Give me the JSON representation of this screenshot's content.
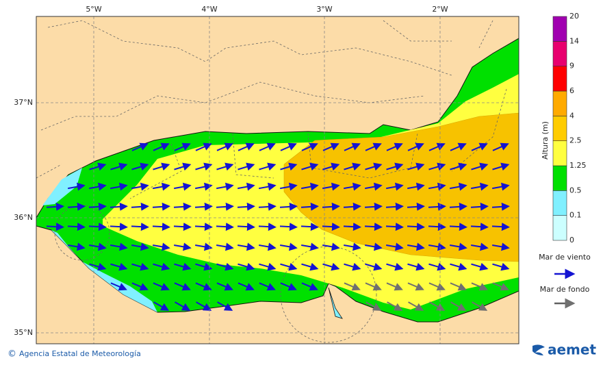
{
  "map": {
    "lon_labels": [
      "5°W",
      "4°W",
      "3°W",
      "2°W"
    ],
    "lat_labels": [
      "37°N",
      "36°N",
      "35°N"
    ]
  },
  "colorbar": {
    "title": "Altura (m)",
    "levels": [
      0,
      0.1,
      0.5,
      1.25,
      2.5,
      4,
      6,
      9,
      14,
      20
    ],
    "colors": [
      "#ccffff",
      "#80f0ff",
      "#00e000",
      "#ffff40",
      "#ffcc00",
      "#ffaa00",
      "#ff0000",
      "#e8006e",
      "#a000b0"
    ]
  },
  "legend": {
    "wind_sea": "Mar de viento",
    "swell": "Mar de fondo"
  },
  "footer": {
    "symbol": "©",
    "agency": "Agencia Estatal de Meteorología",
    "logo": "aemet"
  }
}
